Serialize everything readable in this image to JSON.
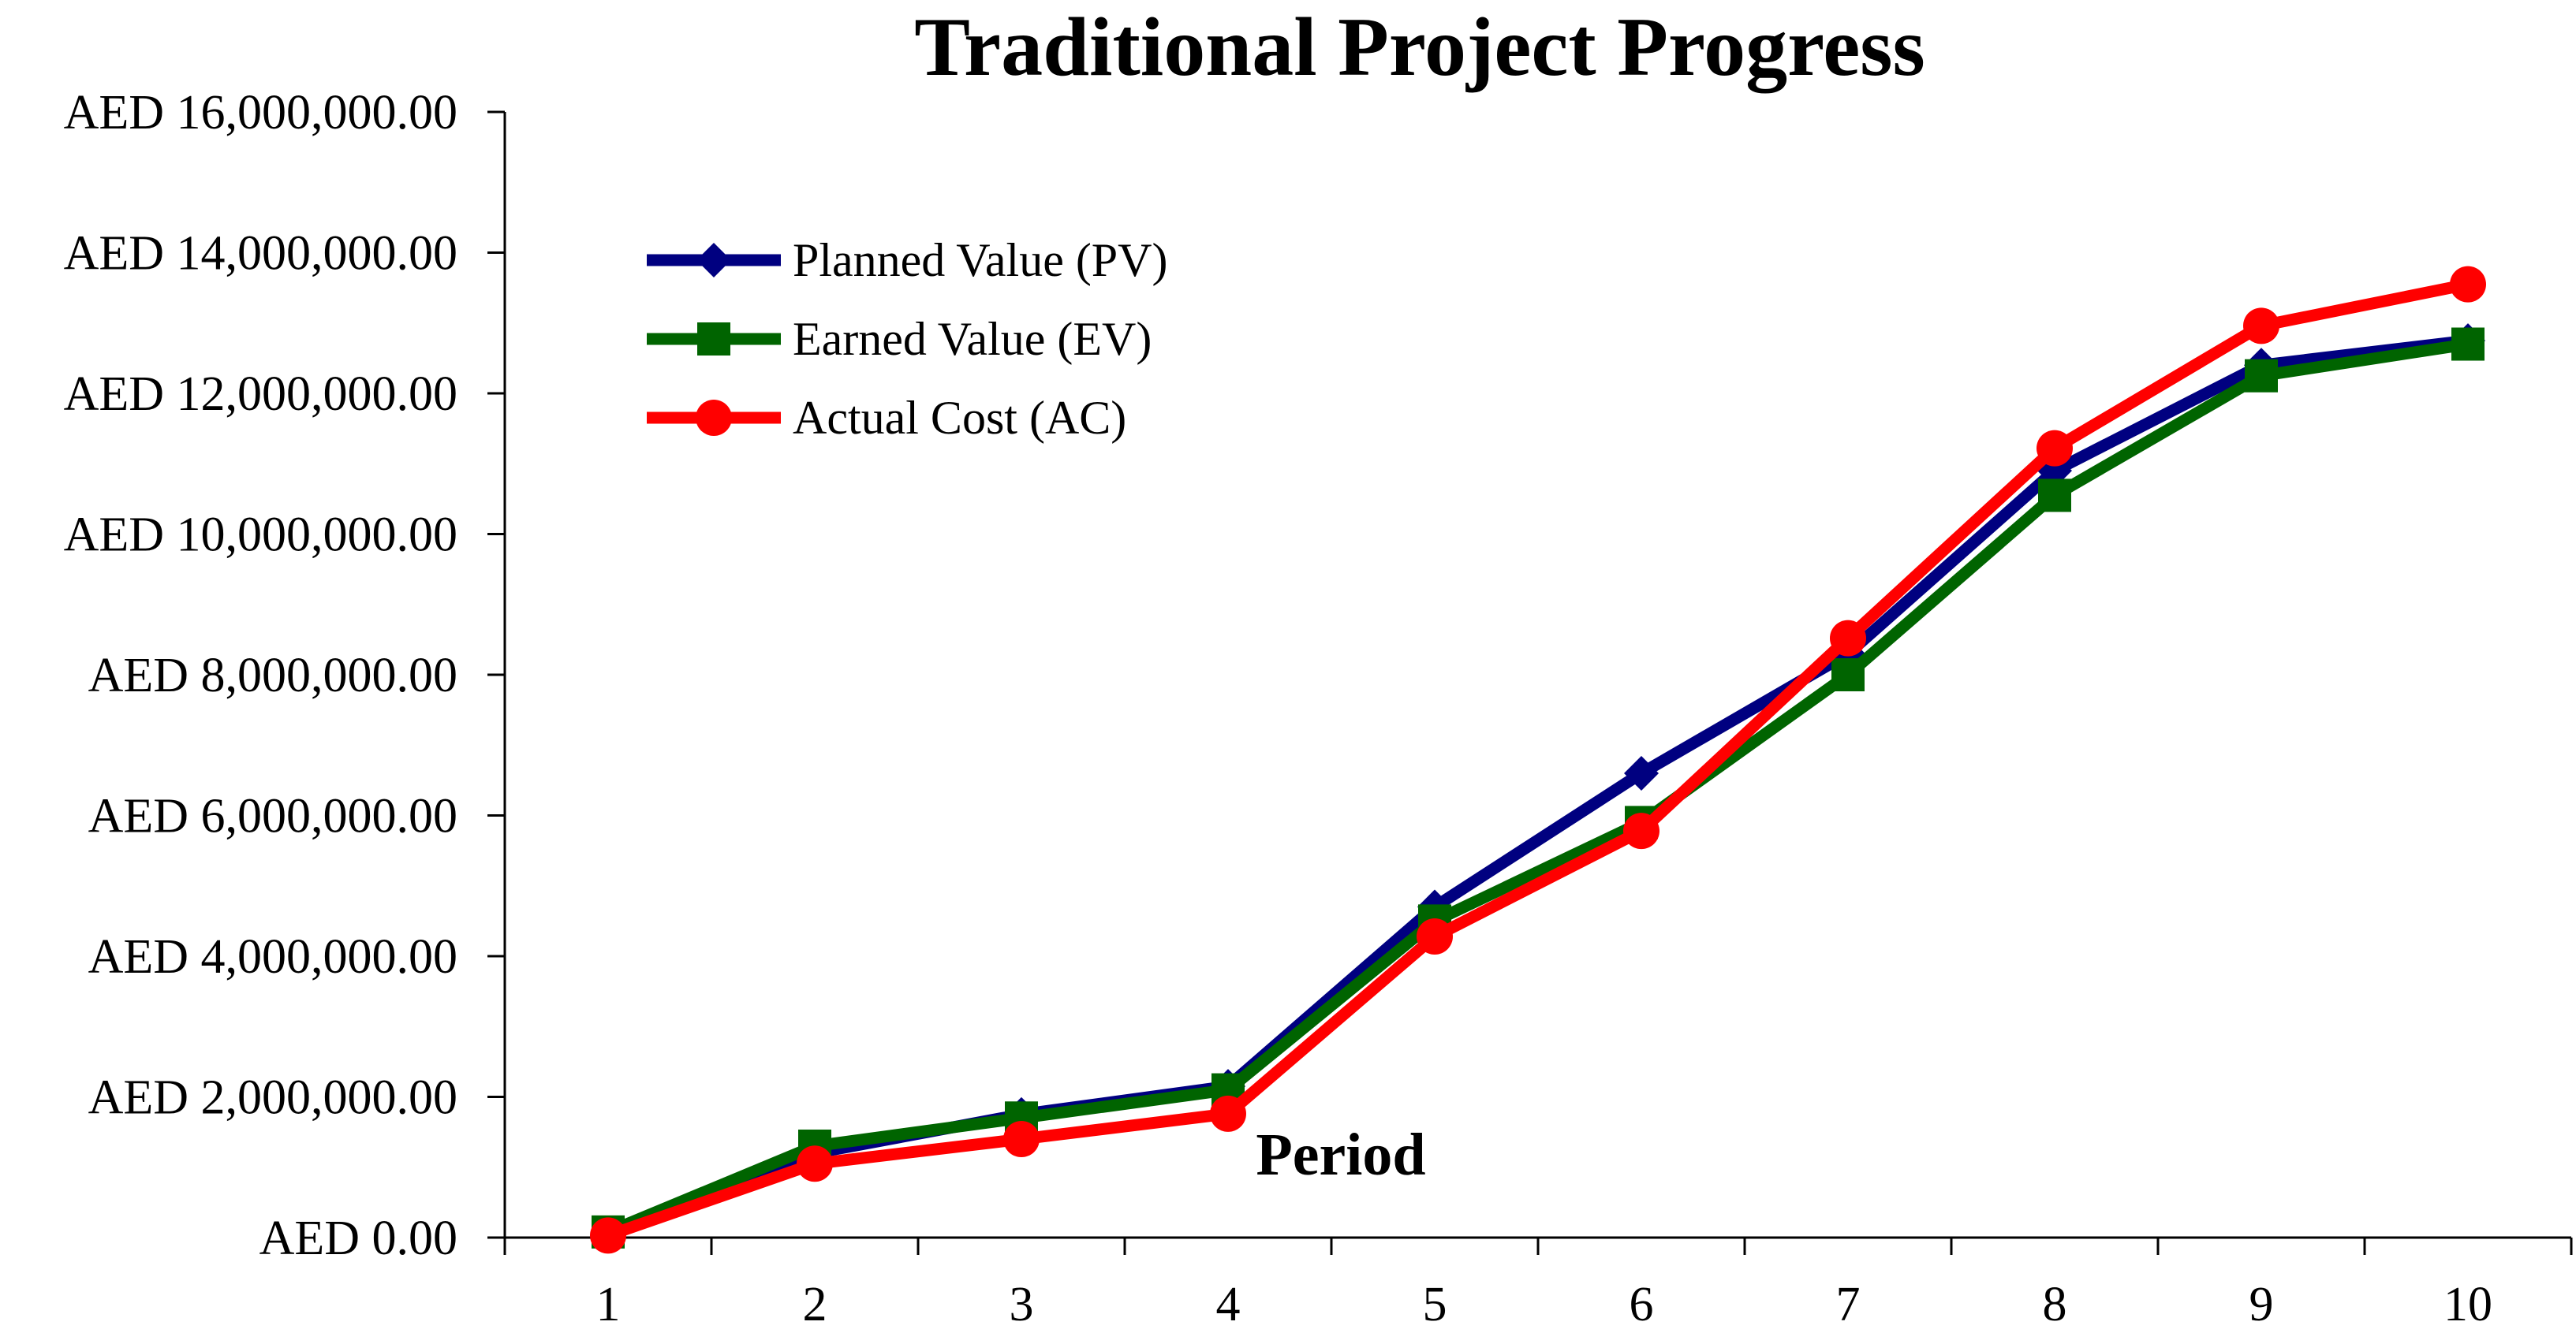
{
  "chart_data": {
    "type": "line",
    "title": "Traditional Project Progress",
    "xlabel": "Period",
    "ylabel": "",
    "categories": [
      "1",
      "2",
      "3",
      "4",
      "5",
      "6",
      "7",
      "8",
      "9",
      "10"
    ],
    "ylim": [
      0,
      16000000
    ],
    "yticks": [
      {
        "value": 0,
        "label": "AED 0.00"
      },
      {
        "value": 2000000,
        "label": "AED 2,000,000.00"
      },
      {
        "value": 4000000,
        "label": "AED 4,000,000.00"
      },
      {
        "value": 6000000,
        "label": "AED 6,000,000.00"
      },
      {
        "value": 8000000,
        "label": "AED 8,000,000.00"
      },
      {
        "value": 10000000,
        "label": "AED 10,000,000.00"
      },
      {
        "value": 12000000,
        "label": "AED 12,000,000.00"
      },
      {
        "value": 14000000,
        "label": "AED 14,000,000.00"
      },
      {
        "value": 16000000,
        "label": "AED 16,000,000.00"
      }
    ],
    "grid": false,
    "legend_position": "top-left",
    "series": [
      {
        "name": "Planned Value (PV)",
        "color": "#000080",
        "marker": "diamond",
        "values": [
          50000,
          1200000,
          1750000,
          2150000,
          4700000,
          6600000,
          8300000,
          10900000,
          12400000,
          12750000
        ]
      },
      {
        "name": "Earned Value (EV)",
        "color": "#006400",
        "marker": "square",
        "values": [
          80000,
          1300000,
          1700000,
          2100000,
          4500000,
          5900000,
          8000000,
          10550000,
          12250000,
          12700000
        ]
      },
      {
        "name": "Actual Cost (AC)",
        "color": "#ff0000",
        "marker": "circle",
        "values": [
          30000,
          1050000,
          1400000,
          1760000,
          4280000,
          5780000,
          8520000,
          11220000,
          12960000,
          13550000
        ]
      }
    ]
  }
}
